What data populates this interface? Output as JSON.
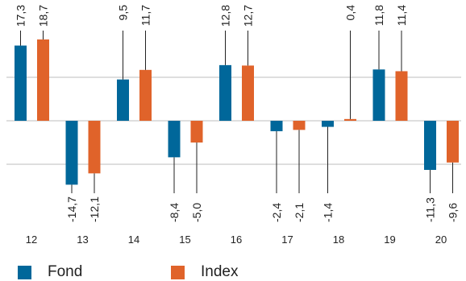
{
  "chart_data": {
    "type": "bar",
    "categories": [
      "12",
      "13",
      "14",
      "15",
      "16",
      "17",
      "18",
      "19",
      "20"
    ],
    "series": [
      {
        "name": "Fond",
        "color": "#00679a",
        "values": [
          17.3,
          -14.7,
          9.5,
          -8.4,
          12.8,
          -2.4,
          -1.4,
          11.8,
          -11.3
        ],
        "labels": [
          "17,3",
          "-14,7",
          "9,5",
          "-8,4",
          "12,8",
          "-2,4",
          "-1,4",
          "11,8",
          "-11,3"
        ]
      },
      {
        "name": "Index",
        "color": "#e0632a",
        "values": [
          18.7,
          -12.1,
          11.7,
          -5.0,
          12.7,
          -2.1,
          0.4,
          11.4,
          -9.6
        ],
        "labels": [
          "18,7",
          "-12,1",
          "11,7",
          "-5,0",
          "12,7",
          "-2,1",
          "0,4",
          "11,4",
          "-9,6"
        ]
      }
    ],
    "gridlines": [
      -10,
      0,
      10
    ],
    "ylim": [
      -22,
      24
    ],
    "xlabel": "",
    "ylabel": "",
    "title": ""
  }
}
